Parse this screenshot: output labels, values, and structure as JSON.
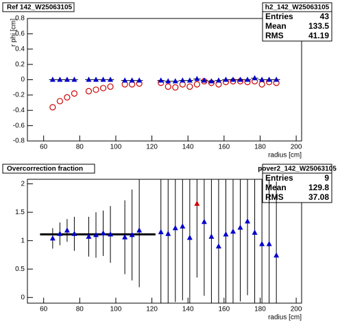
{
  "chart_data": [
    {
      "type": "scatter",
      "title": "Ref 142_W25063105",
      "y_label": "r phi [cm]",
      "x_label": "radius [cm]",
      "stats": {
        "title": "h2_142_W25063105",
        "rows": [
          [
            "Entries",
            43
          ],
          [
            "Mean",
            133.5
          ],
          [
            "RMS",
            41.19
          ]
        ]
      },
      "x": [
        65,
        69,
        73,
        77,
        85,
        89,
        93,
        97,
        105,
        109,
        113,
        125,
        129,
        133,
        137,
        141,
        145,
        149,
        153,
        157,
        161,
        165,
        169,
        173,
        177,
        181,
        185,
        189
      ],
      "series": [
        {
          "color": "#cc0000",
          "marker": "circle",
          "values": [
            -0.36,
            -0.28,
            -0.23,
            -0.18,
            -0.15,
            -0.13,
            -0.11,
            -0.09,
            -0.06,
            -0.06,
            -0.05,
            -0.04,
            -0.09,
            -0.1,
            -0.06,
            -0.09,
            -0.06,
            -0.02,
            -0.04,
            -0.06,
            -0.03,
            -0.02,
            -0.02,
            -0.03,
            -0.02,
            -0.06,
            -0.03,
            -0.04
          ]
        },
        {
          "color": "#0000cc",
          "marker": "triangle",
          "xerr": 2,
          "values": [
            0,
            0,
            0,
            0,
            0,
            0,
            0,
            0,
            -0.01,
            -0.01,
            -0.01,
            -0.01,
            -0.02,
            -0.02,
            -0.01,
            -0.01,
            0.01,
            -0.01,
            -0.02,
            -0.01,
            0,
            0,
            0,
            0,
            0.02,
            0,
            0,
            0
          ]
        }
      ],
      "xlim": [
        51,
        203
      ],
      "xticks": [
        60,
        80,
        100,
        120,
        140,
        160,
        180,
        200
      ],
      "ylim": [
        -0.8,
        0.8
      ],
      "yticks": [
        -0.8,
        -0.6,
        -0.4,
        -0.2,
        0,
        0.2,
        0.4,
        0.6,
        0.8
      ]
    },
    {
      "type": "scatter",
      "title": "Overcorrection fraction",
      "x_label": "radius [cm]",
      "stats": {
        "title": "pover2_142_W25063105",
        "rows": [
          [
            "Entries",
            9
          ],
          [
            "Mean",
            129.8
          ],
          [
            "RMS",
            37.08
          ]
        ]
      },
      "x": [
        65,
        69,
        73,
        77,
        85,
        89,
        93,
        97,
        105,
        109,
        113,
        125,
        129,
        133,
        137,
        141,
        145,
        149,
        153,
        157,
        161,
        165,
        169,
        173,
        177,
        181,
        185,
        189
      ],
      "series": [
        {
          "color": "#0000cc",
          "marker": "triangle",
          "values": [
            1.04,
            1.12,
            1.18,
            1.12,
            1.07,
            1.1,
            1.13,
            1.11,
            1.06,
            1.1,
            1.18,
            1.15,
            1.12,
            1.22,
            1.25,
            1.05,
            null,
            1.33,
            1.07,
            0.9,
            1.11,
            1.16,
            1.23,
            1.34,
            1.14,
            0.94,
            0.94,
            0.74
          ],
          "errors": [
            0.18,
            0.2,
            0.2,
            0.3,
            0.35,
            0.4,
            0.4,
            0.5,
            0.65,
            0.8,
            1.0,
            1.3,
            1.3,
            1.3,
            1.3,
            1.3,
            null,
            1.3,
            1.3,
            1.3,
            1.3,
            1.3,
            1.3,
            1.3,
            1.3,
            1.3,
            1.3,
            1.3
          ]
        },
        {
          "color": "#cc0000",
          "marker": "triangle",
          "values": [
            null,
            null,
            null,
            null,
            null,
            null,
            null,
            null,
            null,
            null,
            null,
            null,
            null,
            null,
            null,
            null,
            1.65,
            null,
            null,
            null,
            null,
            null,
            null,
            null,
            null,
            null,
            null,
            null
          ],
          "errors": [
            null,
            null,
            null,
            null,
            null,
            null,
            null,
            null,
            null,
            null,
            null,
            null,
            null,
            null,
            null,
            null,
            1.3,
            null,
            null,
            null,
            null,
            null,
            null,
            null,
            null,
            null,
            null,
            null
          ]
        }
      ],
      "fit": {
        "xrange": [
          58,
          122
        ],
        "value": 1.11
      },
      "xlim": [
        51,
        203
      ],
      "xticks": [
        60,
        80,
        100,
        120,
        140,
        160,
        180,
        200
      ],
      "ylim": [
        -0.1,
        2.08
      ],
      "yticks": [
        0,
        0.5,
        1,
        1.5,
        2
      ]
    }
  ]
}
